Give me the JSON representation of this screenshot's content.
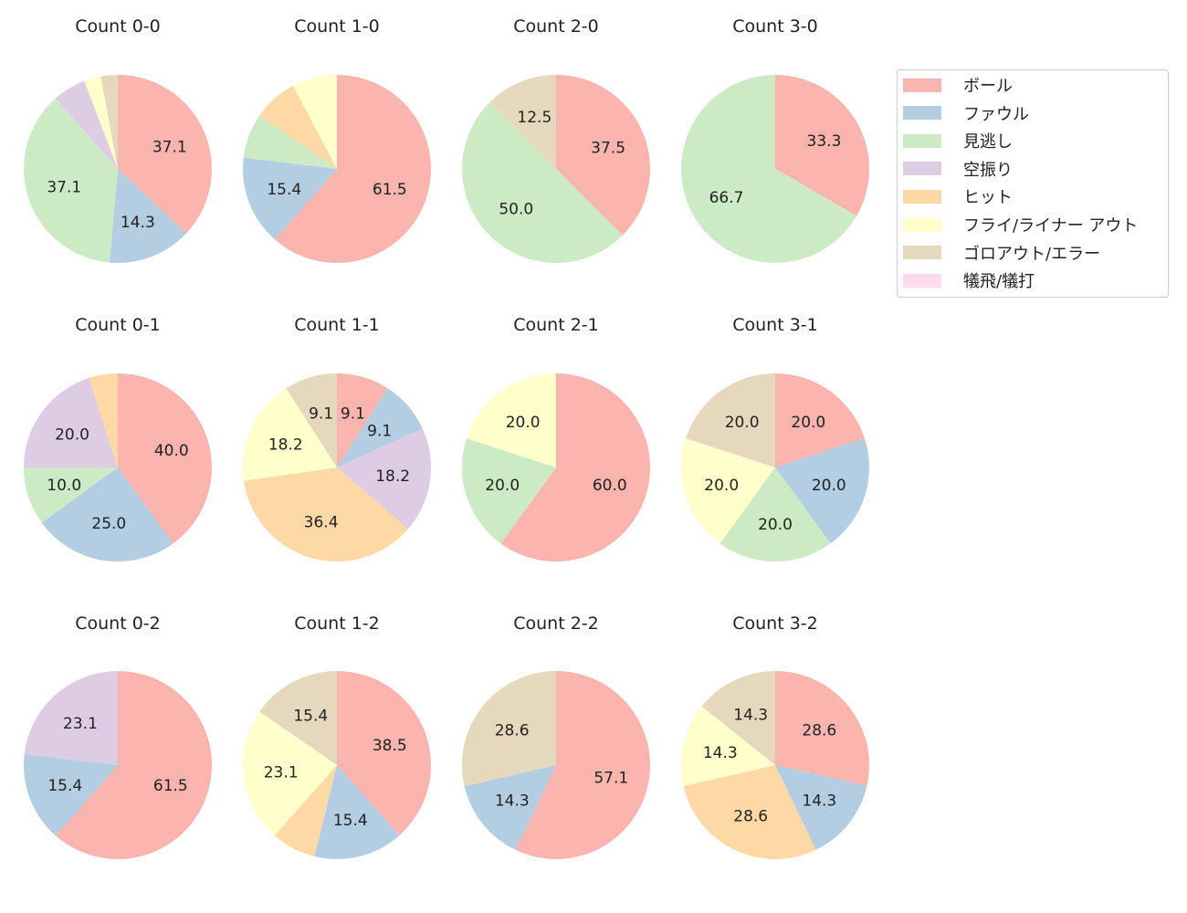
{
  "chart_data": {
    "type": "pie",
    "legend": {
      "placement": "top-right",
      "entries": [
        "ボール",
        "ファウル",
        "見逃し",
        "空振り",
        "ヒット",
        "フライ/ライナー アウト",
        "ゴロアウト/エラー",
        "犠飛/犠打"
      ],
      "colors": [
        "#fbb4ae",
        "#b3cde3",
        "#ccebc5",
        "#decbe4",
        "#fed9a6",
        "#ffffcc",
        "#e5d8bd",
        "#fddaec"
      ]
    },
    "start_angle_deg": 90,
    "direction": "clockwise",
    "pies": [
      {
        "title": "Count 0-0",
        "values": [
          37.1,
          14.3,
          37.1,
          5.7,
          0,
          2.9,
          2.9,
          0
        ]
      },
      {
        "title": "Count 1-0",
        "values": [
          61.5,
          15.4,
          7.7,
          0,
          7.7,
          7.7,
          0,
          0
        ]
      },
      {
        "title": "Count 2-0",
        "values": [
          37.5,
          0,
          50.0,
          0,
          0,
          0,
          12.5,
          0
        ]
      },
      {
        "title": "Count 3-0",
        "values": [
          33.3,
          0,
          66.7,
          0,
          0,
          0,
          0,
          0
        ]
      },
      {
        "title": "Count 0-1",
        "values": [
          40.0,
          25.0,
          10.0,
          20.0,
          5.0,
          0,
          0,
          0
        ]
      },
      {
        "title": "Count 1-1",
        "values": [
          9.1,
          9.1,
          0,
          18.2,
          36.4,
          18.2,
          9.1,
          0
        ]
      },
      {
        "title": "Count 2-1",
        "values": [
          60.0,
          0,
          20.0,
          0,
          0,
          20.0,
          0,
          0
        ]
      },
      {
        "title": "Count 3-1",
        "values": [
          20.0,
          20.0,
          20.0,
          0,
          0,
          20.0,
          20.0,
          0
        ]
      },
      {
        "title": "Count 0-2",
        "values": [
          61.5,
          15.4,
          0,
          23.1,
          0,
          0,
          0,
          0
        ]
      },
      {
        "title": "Count 1-2",
        "values": [
          38.5,
          15.4,
          0,
          0,
          7.7,
          23.1,
          15.4,
          0
        ]
      },
      {
        "title": "Count 2-2",
        "values": [
          57.1,
          14.3,
          0,
          0,
          0,
          0,
          28.6,
          0
        ]
      },
      {
        "title": "Count 3-2",
        "values": [
          28.6,
          14.3,
          0,
          0,
          28.6,
          14.3,
          14.3,
          0
        ]
      }
    ]
  }
}
